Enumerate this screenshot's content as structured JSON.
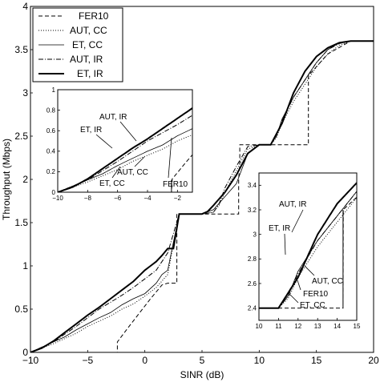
{
  "chart_data": [
    {
      "type": "line",
      "xlabel": "SINR (dB)",
      "ylabel": "Throughput (Mbps)",
      "xlim": [
        -10,
        20
      ],
      "ylim": [
        0,
        4
      ],
      "xticks": [
        "−10",
        "−5",
        "0",
        "5",
        "10",
        "15",
        "20"
      ],
      "yticks": [
        "0",
        "0.5",
        "1",
        "1.5",
        "2",
        "2.5",
        "3",
        "3.5",
        "4"
      ],
      "legend_position": "top-left",
      "grid": false,
      "series": [
        {
          "name": "FER10",
          "style": "dashed",
          "x": [
            -10,
            -2.4,
            -2.4,
            -1.5,
            -0.5,
            0.5,
            1,
            1.5,
            2,
            2.8,
            2.8,
            3.5,
            5.5,
            5.5,
            7,
            8.2,
            8.2,
            8.3,
            8.3,
            11,
            11,
            13,
            14.3,
            14.3,
            16,
            18,
            20
          ],
          "y": [
            0,
            0,
            0.12,
            0.28,
            0.45,
            0.62,
            0.7,
            0.78,
            0.8,
            0.8,
            1.6,
            1.6,
            1.6,
            1.6,
            1.6,
            1.6,
            2.0,
            2.2,
            2.4,
            2.4,
            2.4,
            2.4,
            2.4,
            3.2,
            3.45,
            3.6,
            3.6
          ]
        },
        {
          "name": "AUT, CC",
          "style": "dotted",
          "x": [
            -10,
            -8,
            -6,
            -5,
            -4,
            -3,
            -2,
            -1,
            0,
            1,
            2,
            3,
            4,
            5,
            6,
            6.5,
            7,
            8,
            9,
            10,
            11,
            11.5,
            12,
            13,
            14,
            15,
            16,
            17,
            18,
            20
          ],
          "y": [
            0,
            0.1,
            0.22,
            0.3,
            0.36,
            0.42,
            0.5,
            0.56,
            0.65,
            0.75,
            0.9,
            1.6,
            1.6,
            1.6,
            1.62,
            1.7,
            1.85,
            2.1,
            2.35,
            2.4,
            2.4,
            2.48,
            2.65,
            2.9,
            3.1,
            3.3,
            3.45,
            3.55,
            3.6,
            3.6
          ]
        },
        {
          "name": "ET, CC",
          "style": "solid-thin",
          "x": [
            -10,
            -8,
            -7,
            -6,
            -5,
            -4,
            -3,
            -2,
            -1,
            0,
            1,
            1.5,
            2,
            3,
            4,
            5,
            6,
            7,
            8,
            9,
            10,
            11,
            11.5,
            12,
            13,
            14,
            15,
            16,
            17,
            18,
            20
          ],
          "y": [
            0,
            0.12,
            0.18,
            0.26,
            0.33,
            0.4,
            0.46,
            0.55,
            0.62,
            0.68,
            0.8,
            0.9,
            0.95,
            1.6,
            1.6,
            1.6,
            1.65,
            1.8,
            1.95,
            2.3,
            2.4,
            2.4,
            2.5,
            2.7,
            2.95,
            3.15,
            3.35,
            3.5,
            3.58,
            3.6,
            3.6
          ]
        },
        {
          "name": "AUT, IR",
          "style": "dashdot",
          "x": [
            -10,
            -8,
            -6,
            -4,
            -3,
            -2,
            -1,
            0,
            1,
            2,
            3,
            4,
            5,
            6,
            6.5,
            7,
            8,
            9,
            10,
            11,
            11.5,
            12,
            13,
            14,
            15,
            16,
            17,
            18,
            20
          ],
          "y": [
            0,
            0.12,
            0.3,
            0.5,
            0.58,
            0.66,
            0.75,
            0.85,
            0.95,
            1.15,
            1.6,
            1.6,
            1.6,
            1.62,
            1.72,
            1.9,
            2.15,
            2.38,
            2.4,
            2.4,
            2.5,
            2.68,
            2.95,
            3.15,
            3.35,
            3.5,
            3.57,
            3.6,
            3.6
          ]
        },
        {
          "name": "ET, IR",
          "style": "solid-thick",
          "x": [
            -10,
            -9,
            -8,
            -7,
            -6,
            -5,
            -4,
            -3,
            -2,
            -1,
            0,
            0.5,
            1,
            1.5,
            2,
            2.5,
            3,
            4,
            5,
            5.5,
            6,
            7,
            8,
            9,
            10,
            11,
            12,
            13,
            14,
            15,
            16,
            17,
            18,
            19,
            20
          ],
          "y": [
            0,
            0.05,
            0.13,
            0.23,
            0.33,
            0.43,
            0.52,
            0.62,
            0.72,
            0.82,
            0.95,
            1.0,
            1.05,
            1.12,
            1.2,
            1.2,
            1.6,
            1.6,
            1.6,
            1.63,
            1.7,
            1.85,
            2.05,
            2.3,
            2.4,
            2.4,
            2.65,
            3.0,
            3.25,
            3.42,
            3.52,
            3.58,
            3.6,
            3.6,
            3.6
          ]
        }
      ]
    },
    {
      "type": "line",
      "role": "inset-left",
      "xlim": [
        -10,
        -1
      ],
      "ylim": [
        0,
        1
      ],
      "xticks": [
        "−10",
        "−8",
        "−6",
        "−4",
        "−2"
      ],
      "yticks": [
        "0",
        "0.2",
        "0.4",
        "0.6",
        "0.8",
        "1"
      ],
      "annotations": [
        "AUT, IR",
        "ET, IR",
        "AUT, CC",
        "ET, CC",
        "FER10"
      ]
    },
    {
      "type": "line",
      "role": "inset-right",
      "xlim": [
        10,
        15
      ],
      "ylim": [
        2.3,
        3.5
      ],
      "xticks": [
        "10",
        "11",
        "12",
        "13",
        "14",
        "15"
      ],
      "yticks": [
        "2.4",
        "2.6",
        "2.8",
        "3",
        "3.2",
        "3.4"
      ],
      "annotations": [
        "AUT, IR",
        "ET, IR",
        "AUT, CC",
        "FER10",
        "ET, CC"
      ]
    }
  ]
}
